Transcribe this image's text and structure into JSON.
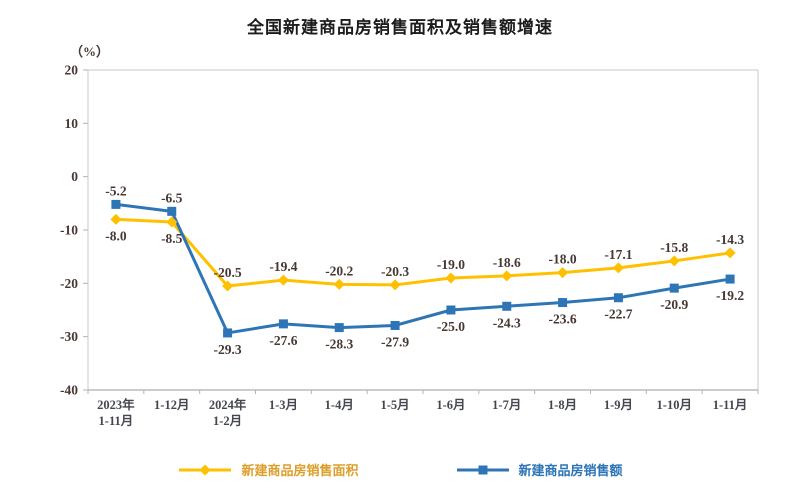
{
  "title": "全国新建商品房销售面积及销售额增速",
  "y_unit_label": "（%）",
  "chart_data": {
    "type": "line",
    "categories": [
      "2023年\n1-11月",
      "1-12月",
      "2024年\n1-2月",
      "1-3月",
      "1-4月",
      "1-5月",
      "1-6月",
      "1-7月",
      "1-8月",
      "1-9月",
      "1-10月",
      "1-11月"
    ],
    "series": [
      {
        "name": "新建商品房销售面积",
        "marker": "diamond",
        "color": "#FFC000",
        "values": [
          -8.0,
          -8.5,
          -20.5,
          -19.4,
          -20.2,
          -20.3,
          -19.0,
          -18.6,
          -18.0,
          -17.1,
          -15.8,
          -14.3
        ]
      },
      {
        "name": "新建商品房销售额",
        "marker": "square",
        "color": "#2E75B6",
        "values": [
          -5.2,
          -6.5,
          -29.3,
          -27.6,
          -28.3,
          -27.9,
          -25.0,
          -24.3,
          -23.6,
          -22.7,
          -20.9,
          -19.2
        ]
      }
    ],
    "ylim": [
      -40,
      20
    ],
    "yticks": [
      20,
      10,
      0,
      -10,
      -20,
      -30,
      -40
    ],
    "grid": false,
    "legend_position": "bottom"
  },
  "colors": {
    "label_text": "#473833",
    "xlabel_text": "#44474f",
    "plot_border": "#c9c9c9",
    "axis_line": "#9a9a9a",
    "tick_line": "#b3b3b3",
    "legend_text": [
      "#DD9F2B",
      "#2E75B6"
    ]
  }
}
